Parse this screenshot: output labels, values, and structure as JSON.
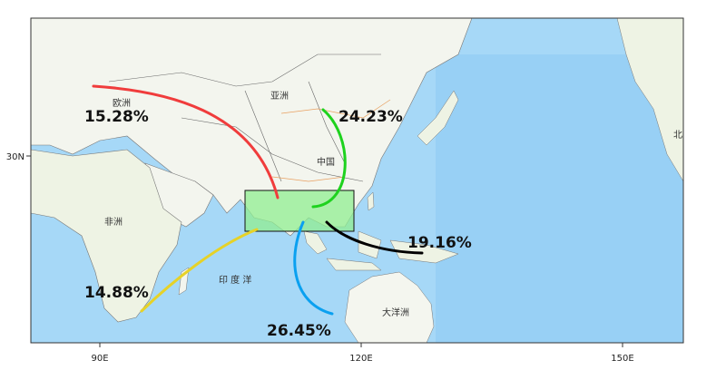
{
  "map": {
    "axes": {
      "x_ticks": [
        "90E",
        "120E",
        "150E"
      ],
      "y_ticks": [
        "30N"
      ]
    },
    "region_labels": {
      "europe": "欧洲",
      "asia": "亚洲",
      "china": "中国",
      "africa": "非洲",
      "indian_ocean": "印 度 洋",
      "oceania": "大洋洲",
      "north_america_partial": "北"
    },
    "flows": [
      {
        "to": "europe",
        "percent": "15.28%",
        "color": "#f03c3c"
      },
      {
        "to": "northeast",
        "percent": "24.23%",
        "color": "#1ed21e"
      },
      {
        "to": "pacific",
        "percent": "19.16%",
        "color": "#000000"
      },
      {
        "to": "indian_ocean",
        "percent": "26.45%",
        "color": "#0aa0f0"
      },
      {
        "to": "africa",
        "percent": "14.88%",
        "color": "#e6d228"
      }
    ],
    "highlight_box_color": "#90ee90",
    "ocean_color": "#9fd3f5",
    "land_color": "#f4f6ef"
  }
}
